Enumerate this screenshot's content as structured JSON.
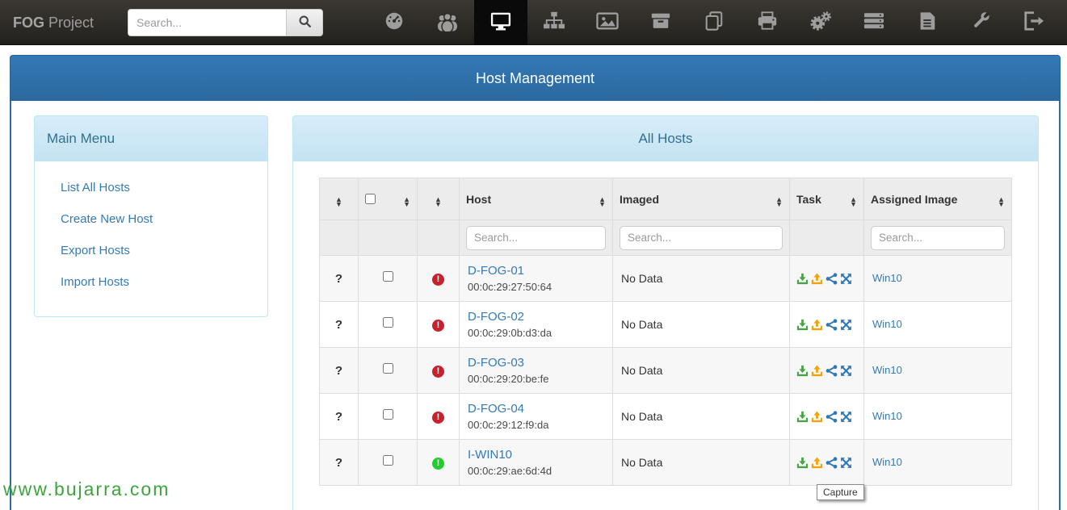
{
  "navbar": {
    "brand_bold": "FOG",
    "brand_rest": "Project",
    "search_placeholder": "Search...",
    "icons": [
      {
        "name": "dashboard-icon",
        "active": false
      },
      {
        "name": "users-icon",
        "active": false
      },
      {
        "name": "hosts-icon",
        "active": true
      },
      {
        "name": "groups-icon",
        "active": false
      },
      {
        "name": "images-icon",
        "active": false
      },
      {
        "name": "storage-icon",
        "active": false
      },
      {
        "name": "snapins-icon",
        "active": false
      },
      {
        "name": "printers-icon",
        "active": false
      },
      {
        "name": "tasks-icon",
        "active": false
      },
      {
        "name": "hardware-icon",
        "active": false
      },
      {
        "name": "reports-icon",
        "active": false
      },
      {
        "name": "service-icon",
        "active": false
      },
      {
        "name": "logout-icon",
        "active": false
      }
    ]
  },
  "page_header": {
    "title": "Host Management"
  },
  "sidebar": {
    "title": "Main Menu",
    "items": [
      {
        "label": "List All Hosts"
      },
      {
        "label": "Create New Host"
      },
      {
        "label": "Export Hosts"
      },
      {
        "label": "Import Hosts"
      }
    ]
  },
  "main_panel": {
    "title": "All Hosts",
    "table": {
      "columns": [
        "",
        "",
        "",
        "Host",
        "Imaged",
        "Task",
        "Assigned Image"
      ],
      "filter_placeholder": "Search...",
      "task_icon_names": [
        "deploy-icon",
        "capture-icon",
        "multicast-icon",
        "advanced-tasks-icon"
      ],
      "rows": [
        {
          "unknown": "?",
          "checked": false,
          "status": "down",
          "host": "D-FOG-01",
          "mac": "00:0c:29:27:50:64",
          "imaged": "No Data",
          "image": "Win10"
        },
        {
          "unknown": "?",
          "checked": false,
          "status": "down",
          "host": "D-FOG-02",
          "mac": "00:0c:29:0b:d3:da",
          "imaged": "No Data",
          "image": "Win10"
        },
        {
          "unknown": "?",
          "checked": false,
          "status": "down",
          "host": "D-FOG-03",
          "mac": "00:0c:29:20:be:fe",
          "imaged": "No Data",
          "image": "Win10"
        },
        {
          "unknown": "?",
          "checked": false,
          "status": "down",
          "host": "D-FOG-04",
          "mac": "00:0c:29:12:f9:da",
          "imaged": "No Data",
          "image": "Win10"
        },
        {
          "unknown": "?",
          "checked": false,
          "status": "up",
          "host": "I-WIN10",
          "mac": "00:0c:29:ae:6d:4d",
          "imaged": "No Data",
          "image": "Win10"
        }
      ]
    }
  },
  "tooltip": {
    "text": "Capture"
  },
  "watermark": {
    "text": "www.bujarra.com"
  },
  "colors": {
    "accent_blue": "#337ab7",
    "primary_heading_top": "#3379b5",
    "primary_heading_bottom": "#2b68a0",
    "info_heading_bg": "#d7edf9",
    "info_text": "#31708f",
    "status_down": "#c9202e",
    "status_up": "#21cc2e",
    "deploy_green": "#47a447",
    "capture_orange": "#f0a30a",
    "watermark_green": "#3fa43f",
    "navbar_bg": "#2e2b27"
  }
}
